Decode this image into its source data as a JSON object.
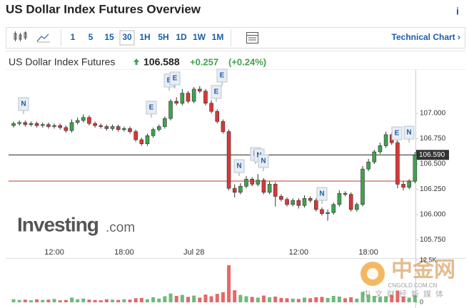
{
  "header": {
    "title": "US Dollar Index Futures Overview",
    "info": "i"
  },
  "toolbar": {
    "intervals": [
      "1",
      "5",
      "15",
      "30",
      "1H",
      "5H",
      "1D",
      "1W",
      "1M"
    ],
    "selected": "30",
    "link": "Technical Chart ›"
  },
  "quote": {
    "name": "US Dollar Index Futures",
    "price": 106.588,
    "change": "+0.257",
    "change_pct": "(+0.24%)"
  },
  "logo": {
    "brand": "Investing",
    "suffix": ".com"
  },
  "watermark": {
    "name": "中金网",
    "site": "CNGOLD.COM.CN",
    "tagline": "中文财经新媒体"
  },
  "chart_data": {
    "type": "candlestick",
    "categories": [
      null,
      null,
      null,
      null,
      null,
      null,
      null,
      "12:00",
      null,
      null,
      null,
      null,
      null,
      null,
      null,
      null,
      null,
      null,
      null,
      "18:00",
      null,
      null,
      null,
      null,
      null,
      null,
      null,
      null,
      null,
      null,
      null,
      "Jul 28",
      null,
      null,
      null,
      null,
      null,
      null,
      null,
      null,
      null,
      null,
      null,
      null,
      null,
      null,
      null,
      null,
      null,
      "12:00",
      null,
      null,
      null,
      null,
      null,
      null,
      null,
      null,
      null,
      null,
      null,
      "18:00",
      null,
      null,
      null,
      null,
      null,
      null,
      null,
      null
    ],
    "open": [
      106.88,
      106.9,
      106.91,
      106.89,
      106.9,
      106.88,
      106.89,
      106.87,
      106.88,
      106.86,
      106.83,
      106.91,
      106.93,
      106.96,
      106.9,
      106.88,
      106.87,
      106.85,
      106.87,
      106.84,
      106.85,
      106.82,
      106.74,
      106.7,
      106.78,
      106.84,
      106.87,
      106.95,
      107.12,
      107.1,
      107.2,
      107.12,
      107.24,
      107.22,
      107.1,
      107.02,
      106.92,
      106.82,
      106.26,
      106.22,
      106.28,
      106.35,
      106.3,
      106.34,
      106.22,
      106.3,
      106.18,
      106.15,
      106.1,
      106.14,
      106.09,
      106.16,
      106.14,
      106.05,
      106.01,
      106.02,
      106.1,
      106.21,
      106.2,
      106.05,
      106.1,
      106.45,
      106.52,
      106.62,
      106.68,
      106.79,
      106.71,
      106.3,
      106.27,
      106.33
    ],
    "high": [
      106.92,
      106.93,
      106.93,
      106.92,
      106.92,
      106.91,
      106.91,
      106.9,
      106.9,
      106.88,
      106.94,
      106.96,
      106.99,
      106.98,
      106.92,
      106.9,
      106.89,
      106.89,
      106.89,
      106.87,
      106.87,
      106.84,
      106.76,
      106.8,
      106.86,
      106.89,
      106.97,
      107.14,
      107.16,
      107.24,
      107.22,
      107.26,
      107.27,
      107.24,
      107.13,
      107.04,
      106.94,
      106.84,
      106.3,
      106.31,
      106.38,
      106.37,
      106.4,
      106.36,
      106.33,
      106.32,
      106.2,
      106.17,
      106.16,
      106.16,
      106.19,
      106.18,
      106.16,
      106.07,
      106.05,
      106.12,
      106.24,
      106.23,
      106.22,
      106.12,
      106.48,
      106.55,
      106.64,
      106.71,
      106.82,
      106.81,
      106.73,
      106.33,
      106.35,
      106.62
    ],
    "low": [
      106.86,
      106.88,
      106.87,
      106.87,
      106.86,
      106.86,
      106.85,
      106.85,
      106.84,
      106.81,
      106.81,
      106.89,
      106.91,
      106.88,
      106.86,
      106.85,
      106.83,
      106.83,
      106.82,
      106.82,
      106.8,
      106.72,
      106.68,
      106.68,
      106.76,
      106.82,
      106.85,
      106.93,
      107.08,
      107.08,
      107.1,
      107.1,
      107.2,
      107.08,
      107.0,
      106.9,
      106.8,
      106.24,
      106.17,
      106.2,
      106.26,
      106.28,
      106.28,
      106.2,
      106.2,
      106.08,
      106.13,
      106.08,
      106.08,
      106.06,
      106.07,
      106.12,
      106.03,
      105.99,
      105.94,
      106.0,
      106.08,
      106.18,
      106.03,
      106.03,
      106.08,
      106.43,
      106.5,
      106.6,
      106.66,
      106.69,
      106.26,
      106.24,
      106.25,
      106.31
    ],
    "close": [
      106.9,
      106.91,
      106.89,
      106.9,
      106.88,
      106.89,
      106.87,
      106.88,
      106.86,
      106.83,
      106.91,
      106.93,
      106.96,
      106.9,
      106.88,
      106.87,
      106.85,
      106.87,
      106.84,
      106.85,
      106.82,
      106.74,
      106.7,
      106.78,
      106.84,
      106.87,
      106.95,
      107.12,
      107.1,
      107.2,
      107.12,
      107.24,
      107.22,
      107.1,
      107.02,
      106.92,
      106.82,
      106.26,
      106.22,
      106.28,
      106.35,
      106.3,
      106.34,
      106.22,
      106.3,
      106.18,
      106.15,
      106.1,
      106.14,
      106.09,
      106.16,
      106.14,
      106.05,
      106.01,
      106.02,
      106.1,
      106.21,
      106.2,
      106.05,
      106.1,
      106.45,
      106.52,
      106.62,
      106.68,
      106.79,
      106.71,
      106.3,
      106.27,
      106.33,
      106.588
    ],
    "volume": [
      900,
      700,
      800,
      600,
      900,
      700,
      800,
      1000,
      600,
      700,
      1400,
      900,
      1100,
      800,
      700,
      600,
      900,
      800,
      700,
      900,
      800,
      1200,
      1300,
      900,
      1500,
      1100,
      1800,
      2600,
      1900,
      2200,
      1600,
      2000,
      1400,
      2300,
      1800,
      2500,
      3000,
      11000,
      3600,
      2200,
      1800,
      1600,
      1400,
      2000,
      1500,
      1700,
      1300,
      1200,
      1100,
      1000,
      1400,
      1200,
      1500,
      1600,
      1300,
      1900,
      1700,
      1200,
      1500,
      1100,
      3100,
      2200,
      1900,
      1600,
      1800,
      2200,
      3500,
      1700,
      1400,
      2100
    ],
    "up_color": "#3fa34d",
    "down_color": "#d93737",
    "ylim": [
      105.69,
      107.43
    ],
    "yticks": [
      {
        "value": 105.75,
        "label": "105.750"
      },
      {
        "value": 106,
        "label": "106.000"
      },
      {
        "value": 106.25,
        "label": "106.250"
      },
      {
        "value": 106.5,
        "label": "106.500"
      },
      {
        "value": 106.75,
        "label": "106.750"
      },
      {
        "value": 107,
        "label": "107.000"
      }
    ],
    "vlim": [
      0,
      12500
    ],
    "vticks": [
      0,
      {
        "value": 12500,
        "label": "12.5K"
      }
    ],
    "price_tag": {
      "value": 106.59,
      "label": "106.590"
    },
    "prev_close_line": 106.331,
    "events": [
      {
        "label": "N"
      },
      {
        "label": "E"
      },
      {
        "label": "E"
      },
      {
        "label": "E"
      },
      {
        "label": "E"
      },
      {
        "label": "E"
      },
      {
        "label": "N"
      },
      {
        "label": "N"
      },
      {
        "label": "N"
      },
      {
        "label": "N"
      },
      {
        "label": "N"
      },
      {
        "label": "E"
      },
      {
        "label": "N"
      }
    ]
  }
}
